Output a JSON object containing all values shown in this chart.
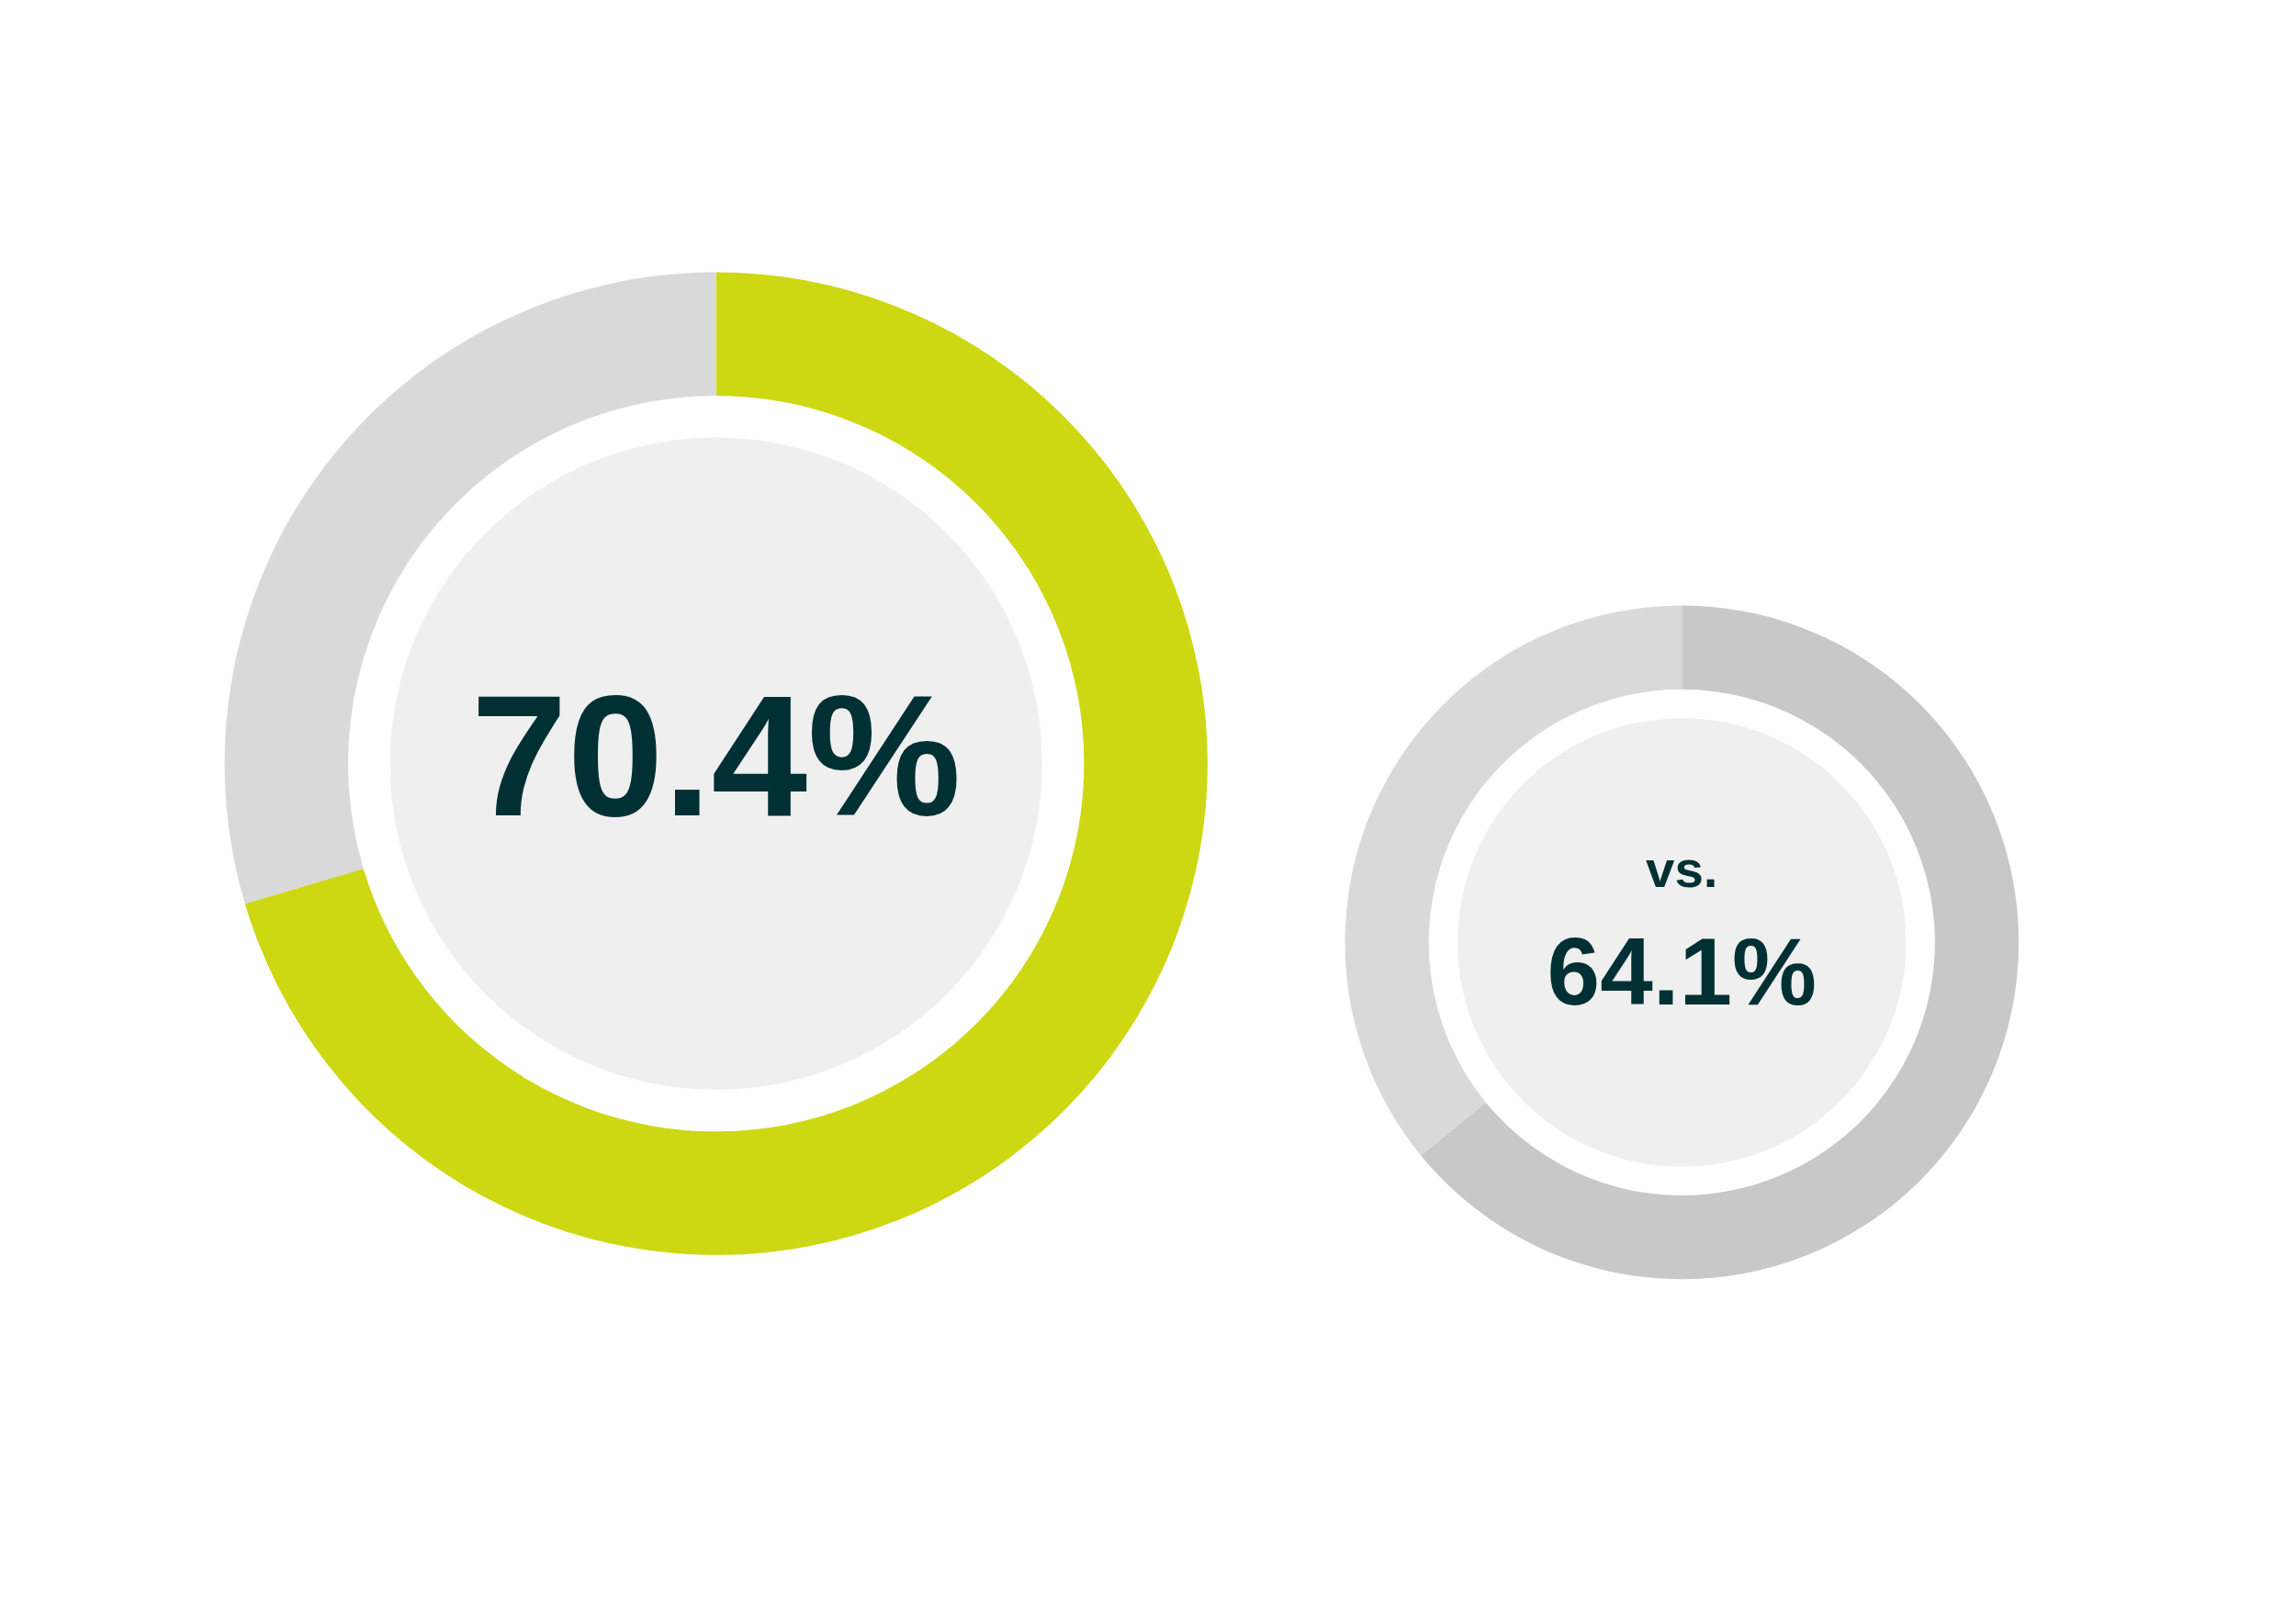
{
  "chart_data": [
    {
      "type": "donut",
      "categories": [
        null,
        null
      ],
      "values": [
        70.4,
        29.6
      ],
      "colors": [
        "#cdd813",
        "#d9d9d9"
      ],
      "value_labels": [
        "70.4%",
        null
      ],
      "legend": false
    },
    {
      "type": "donut",
      "categories": [
        null,
        null
      ],
      "values": [
        64.1,
        35.9
      ],
      "colors": [
        "#c8c8c8",
        "#d9d9d9"
      ],
      "value_labels": [
        "64.1%",
        null
      ],
      "annotations": [
        "vs."
      ],
      "legend": false
    }
  ]
}
